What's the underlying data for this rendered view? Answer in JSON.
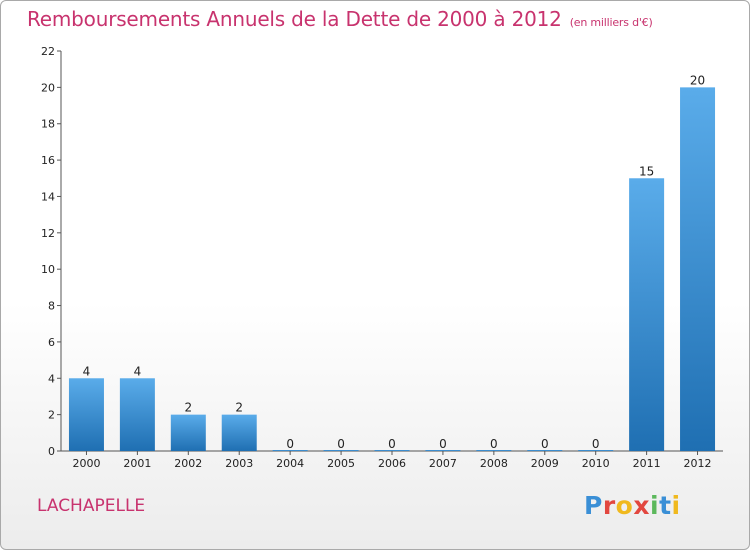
{
  "header": {
    "title": "Remboursements Annuels de la Dette de 2000 à 2012",
    "subtitle": "(en milliers d'€)"
  },
  "footer": {
    "commune": "LACHAPELLE",
    "logo_letters": [
      "P",
      "r",
      "o",
      "x",
      "i",
      "t",
      "i"
    ],
    "logo_colors": [
      "#3a8fd6",
      "#e2473f",
      "#f0b91e",
      "#e2473f",
      "#5cb85c",
      "#3a8fd6",
      "#f0b91e"
    ]
  },
  "chart_data": {
    "type": "bar",
    "title": "Remboursements Annuels de la Dette de 2000 à 2012",
    "xlabel": "",
    "ylabel": "",
    "categories": [
      "2000",
      "2001",
      "2002",
      "2003",
      "2004",
      "2005",
      "2006",
      "2007",
      "2008",
      "2009",
      "2010",
      "2011",
      "2012"
    ],
    "values": [
      4,
      4,
      2,
      2,
      0,
      0,
      0,
      0,
      0,
      0,
      0,
      15,
      20
    ],
    "data_labels": [
      "4",
      "4",
      "2",
      "2",
      "0",
      "0",
      "0",
      "0",
      "0",
      "0",
      "0",
      "15",
      "20"
    ],
    "ylim": [
      0,
      22
    ],
    "yticks": [
      0,
      2,
      4,
      6,
      8,
      10,
      12,
      14,
      16,
      18,
      20,
      22
    ],
    "ytick_labels": [
      "0",
      "2",
      "4",
      "6",
      "8",
      "10",
      "12",
      "14",
      "16",
      "18",
      "20",
      "22"
    ],
    "grid": false,
    "bar_color": "#3d97db"
  }
}
